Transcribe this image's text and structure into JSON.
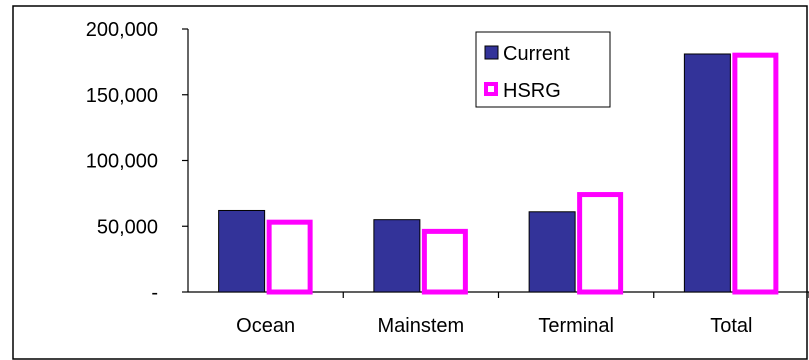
{
  "chart_data": {
    "type": "bar",
    "categories": [
      "Ocean",
      "Mainstem",
      "Terminal",
      "Total"
    ],
    "series": [
      {
        "name": "Current",
        "values": [
          62000,
          55000,
          61000,
          181000
        ],
        "fill": "#333399",
        "stroke": "#000000"
      },
      {
        "name": "HSRG",
        "values": [
          55000,
          48000,
          76000,
          182000
        ],
        "fill": "#ffffff",
        "stroke": "#ff00ff"
      }
    ],
    "ylim": [
      0,
      200000
    ],
    "yticks": [
      0,
      50000,
      100000,
      150000,
      200000
    ],
    "ytick_labels": [
      "-",
      "50,000",
      "100,000",
      "150,000",
      "200,000"
    ],
    "grid": false,
    "legend_position": "top-center"
  }
}
